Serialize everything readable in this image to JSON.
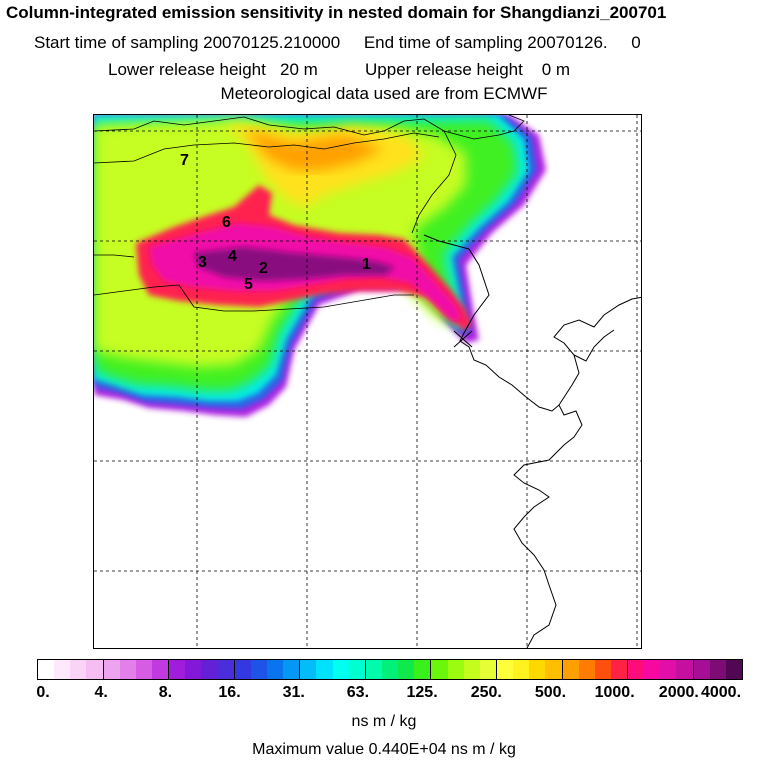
{
  "header": {
    "title": "Column-integrated emission sensitivity in nested domain for Shangdianzi_200701",
    "sampling": "Start time of sampling 20070125.210000     End time of sampling 20070126.     0",
    "release": "Lower release height   20 m          Upper release height    0 m",
    "met": "Meteorological data used are from ECMWF"
  },
  "map": {
    "labels": [
      "7",
      "6",
      "3",
      "4",
      "2",
      "5",
      "1"
    ],
    "marker": "receptor-x-icon"
  },
  "colorbar": {
    "colors": [
      "#ffffff",
      "#fde9fb",
      "#fad4f7",
      "#f5bdf2",
      "#eda3ee",
      "#e27fe9",
      "#d65ce4",
      "#c03ae0",
      "#a11ddc",
      "#8318d9",
      "#6420d6",
      "#4a2ddb",
      "#3338e0",
      "#1d53e6",
      "#0a73ee",
      "#0597f4",
      "#02bdf8",
      "#00e1fb",
      "#00ffee",
      "#00ffcf",
      "#00fbaa",
      "#00f07a",
      "#10e94b",
      "#39f01c",
      "#6bf70c",
      "#9cfc0f",
      "#c4fd1d",
      "#e6fe36",
      "#ffff3a",
      "#fff21e",
      "#ffd800",
      "#ffbe00",
      "#ff9f00",
      "#ff7c00",
      "#ff4f0f",
      "#ff2244",
      "#ff0d7a",
      "#f708a0",
      "#e10ea7",
      "#c40f9f",
      "#a40f95",
      "#7d0c75",
      "#520752"
    ],
    "labels": [
      "0.",
      "4.",
      "8.",
      "16.",
      "31.",
      "63.",
      "125.",
      "250.",
      "500.",
      "1000.",
      "2000.",
      "4000."
    ],
    "units": "ns m / kg",
    "maximum": "Maximum value  0.440E+04 ns m / kg"
  }
}
